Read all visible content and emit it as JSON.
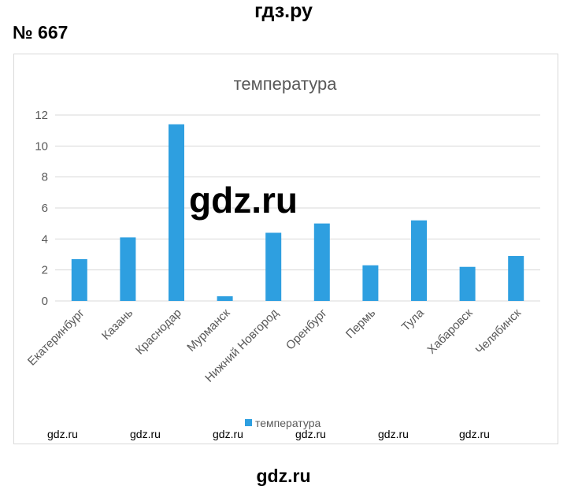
{
  "header": {
    "site": "гдз.ру",
    "task_number": "№ 667"
  },
  "watermarks": {
    "center": "gdz.ru",
    "row": [
      "gdz.ru",
      "gdz.ru",
      "gdz.ru",
      "gdz.ru",
      "gdz.ru",
      "gdz.ru"
    ],
    "footer": "gdz.ru"
  },
  "chart_data": {
    "type": "bar",
    "title": "температура",
    "categories": [
      "Екатеринбург",
      "Казань",
      "Краснодар",
      "Мурманск",
      "Нижний Новгород",
      "Оренбург",
      "Пермь",
      "Тула",
      "Хабаровск",
      "Челябинск"
    ],
    "series": [
      {
        "name": "температура",
        "values": [
          2.7,
          4.1,
          11.4,
          0.3,
          4.4,
          5.0,
          2.3,
          5.2,
          2.2,
          2.9
        ]
      }
    ],
    "ylim": [
      0,
      12
    ],
    "yticks": [
      "0",
      "2",
      "4",
      "6",
      "8",
      "10",
      "12"
    ],
    "grid": true,
    "legend": "bottom",
    "bar_color": "#2e9fe0",
    "grid_color": "#d9d9d9",
    "text_color": "#595959"
  }
}
